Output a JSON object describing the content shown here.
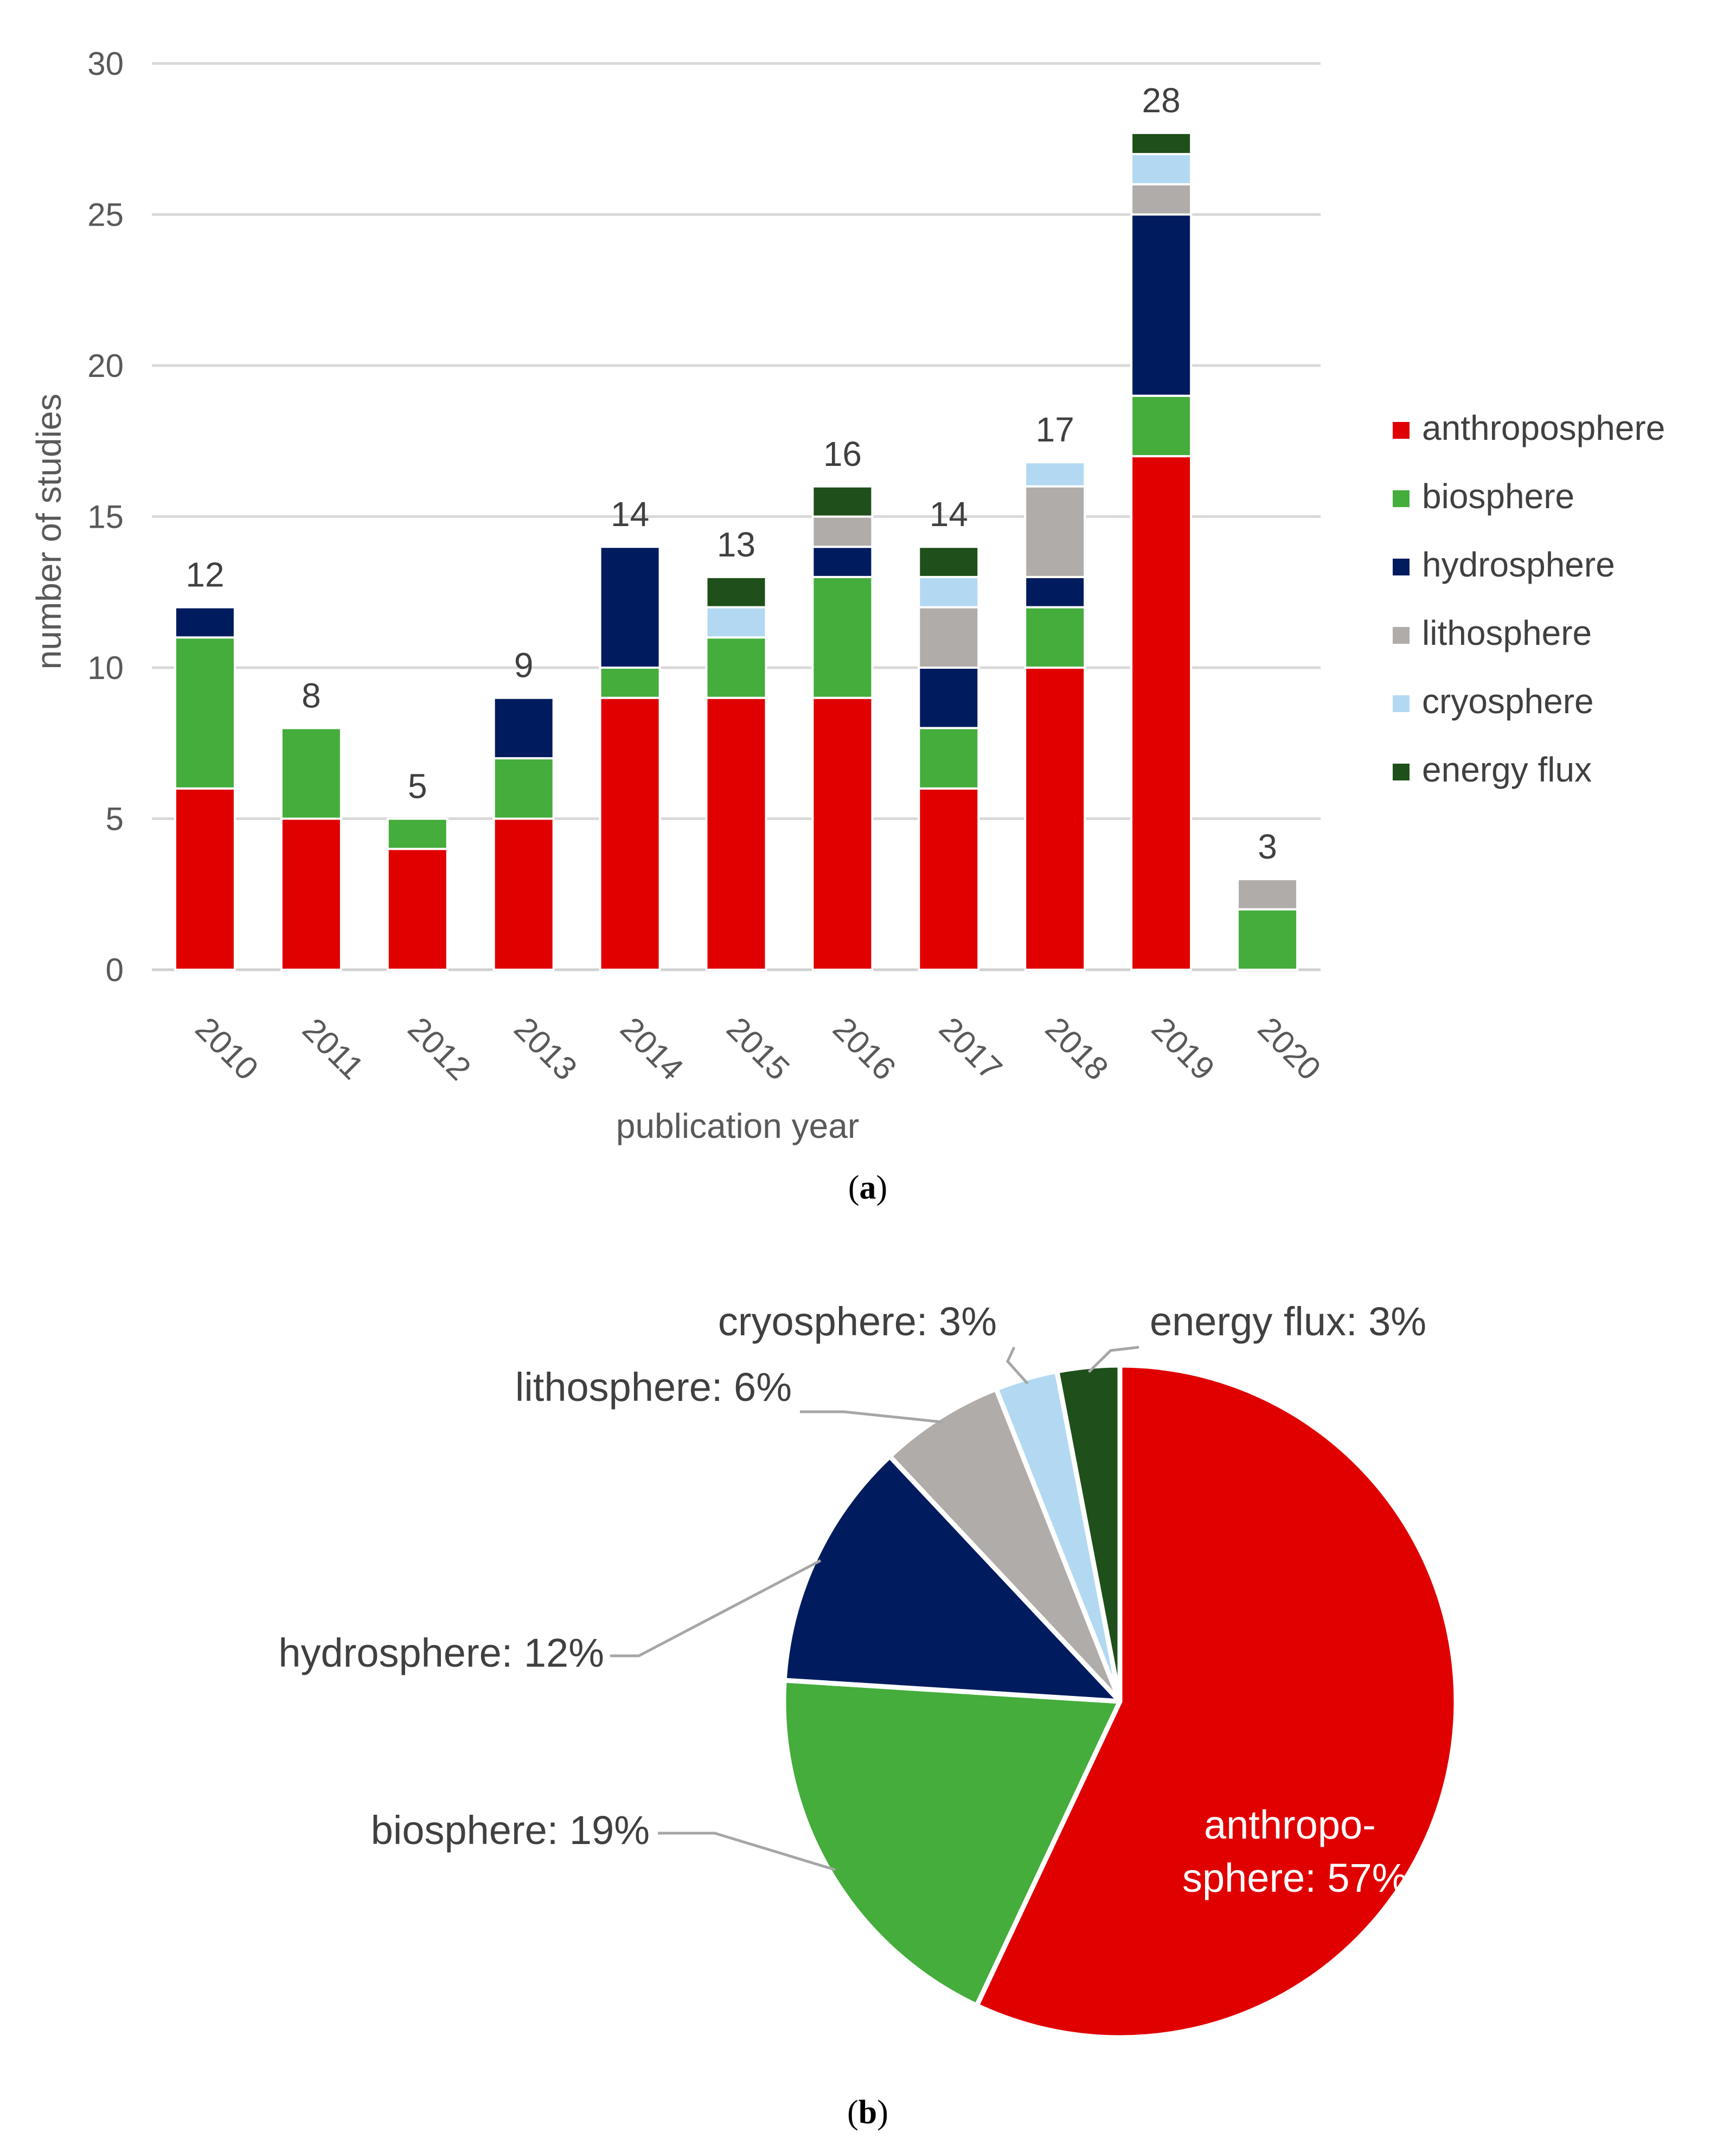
{
  "colors": {
    "anthroposphere": "#e00000",
    "biosphere": "#44ad3c",
    "hydrosphere": "#001b5e",
    "lithosphere": "#b0aca9",
    "cryosphere": "#b3d9f2",
    "energy_flux": "#1f4f1b"
  },
  "chart_data": [
    {
      "type": "bar",
      "stacked": true,
      "title": "",
      "xlabel": "publication year",
      "ylabel": "number of studies",
      "ylim": [
        0,
        30
      ],
      "yticks": [
        0,
        5,
        10,
        15,
        20,
        25,
        30
      ],
      "grid": true,
      "legend_position": "right",
      "categories": [
        "2010",
        "2011",
        "2012",
        "2013",
        "2014",
        "2015",
        "2016",
        "2017",
        "2018",
        "2019",
        "2020"
      ],
      "series": [
        {
          "name": "anthroposphere",
          "color_key": "anthroposphere",
          "values": [
            6,
            5,
            4,
            5,
            9,
            9,
            9,
            6,
            10,
            17,
            0
          ]
        },
        {
          "name": "biosphere",
          "color_key": "biosphere",
          "values": [
            5,
            3,
            1,
            2,
            1,
            2,
            4,
            2,
            2,
            2,
            2
          ]
        },
        {
          "name": "hydrosphere",
          "color_key": "hydrosphere",
          "values": [
            1,
            0,
            0,
            2,
            4,
            0,
            1,
            2,
            1,
            6,
            0
          ]
        },
        {
          "name": "lithosphere",
          "color_key": "lithosphere",
          "values": [
            0,
            0,
            0,
            0,
            0,
            0,
            1,
            2,
            3,
            1,
            1
          ]
        },
        {
          "name": "cryosphere",
          "color_key": "cryosphere",
          "values": [
            0,
            0,
            0,
            0,
            0,
            1,
            0,
            1,
            0.8,
            1,
            0
          ]
        },
        {
          "name": "energy flux",
          "color_key": "energy_flux",
          "values": [
            0,
            0,
            0,
            0,
            0,
            1,
            1,
            1,
            0,
            0.7,
            0
          ]
        }
      ],
      "totals": [
        "12",
        "8",
        "5",
        "9",
        "14",
        "13",
        "16",
        "14",
        "17",
        "28",
        "3"
      ],
      "caption": "(a)"
    },
    {
      "type": "pie",
      "title": "",
      "slices": [
        {
          "name": "anthroposphere",
          "value": 57,
          "color_key": "anthroposphere",
          "label_lines": [
            "anthropo-",
            "sphere: 57%"
          ]
        },
        {
          "name": "biosphere",
          "value": 19,
          "color_key": "biosphere",
          "label": "biosphere: 19%"
        },
        {
          "name": "hydrosphere",
          "value": 12,
          "color_key": "hydrosphere",
          "label": "hydrosphere: 12%"
        },
        {
          "name": "lithosphere",
          "value": 6,
          "color_key": "lithosphere",
          "label": "lithosphere: 6%"
        },
        {
          "name": "cryosphere",
          "value": 3,
          "color_key": "cryosphere",
          "label": "cryosphere: 3%"
        },
        {
          "name": "energy flux",
          "value": 3,
          "color_key": "energy_flux",
          "label": "energy flux: 3%"
        }
      ],
      "caption": "(b)"
    }
  ]
}
